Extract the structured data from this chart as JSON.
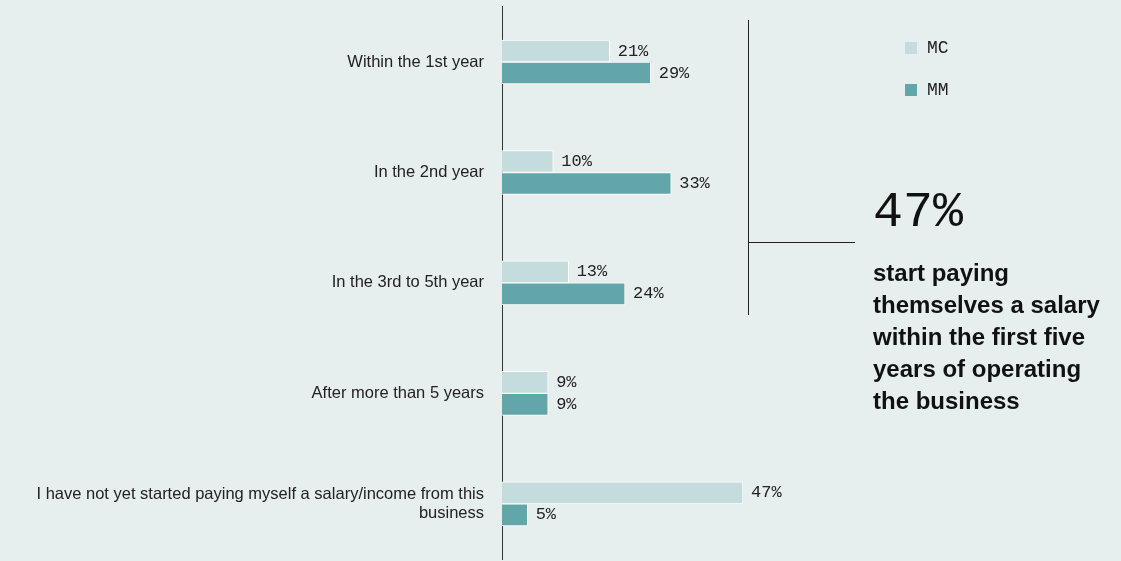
{
  "chart_data": {
    "type": "bar",
    "orientation": "horizontal",
    "categories": [
      "Within the 1st year",
      "In the 2nd year",
      "In the 3rd to 5th year",
      "After more than 5 years",
      "I have not yet started paying myself a salary/income from this business"
    ],
    "series": [
      {
        "name": "MC",
        "color": "#c5dcdd",
        "values": [
          21,
          10,
          13,
          9,
          47
        ],
        "value_labels": [
          "21%",
          "10%",
          "13%",
          "9%",
          "47%"
        ]
      },
      {
        "name": "MM",
        "color": "#62a6aa",
        "values": [
          29,
          33,
          24,
          9,
          5
        ],
        "value_labels": [
          "29%",
          "33%",
          "24%",
          "9%",
          "5%"
        ]
      }
    ],
    "grid": false,
    "legend": "top right",
    "tick_labels": "y",
    "annotations": [
      "47%",
      "start paying themselves a salary within the first five years of operating the business"
    ]
  }
}
